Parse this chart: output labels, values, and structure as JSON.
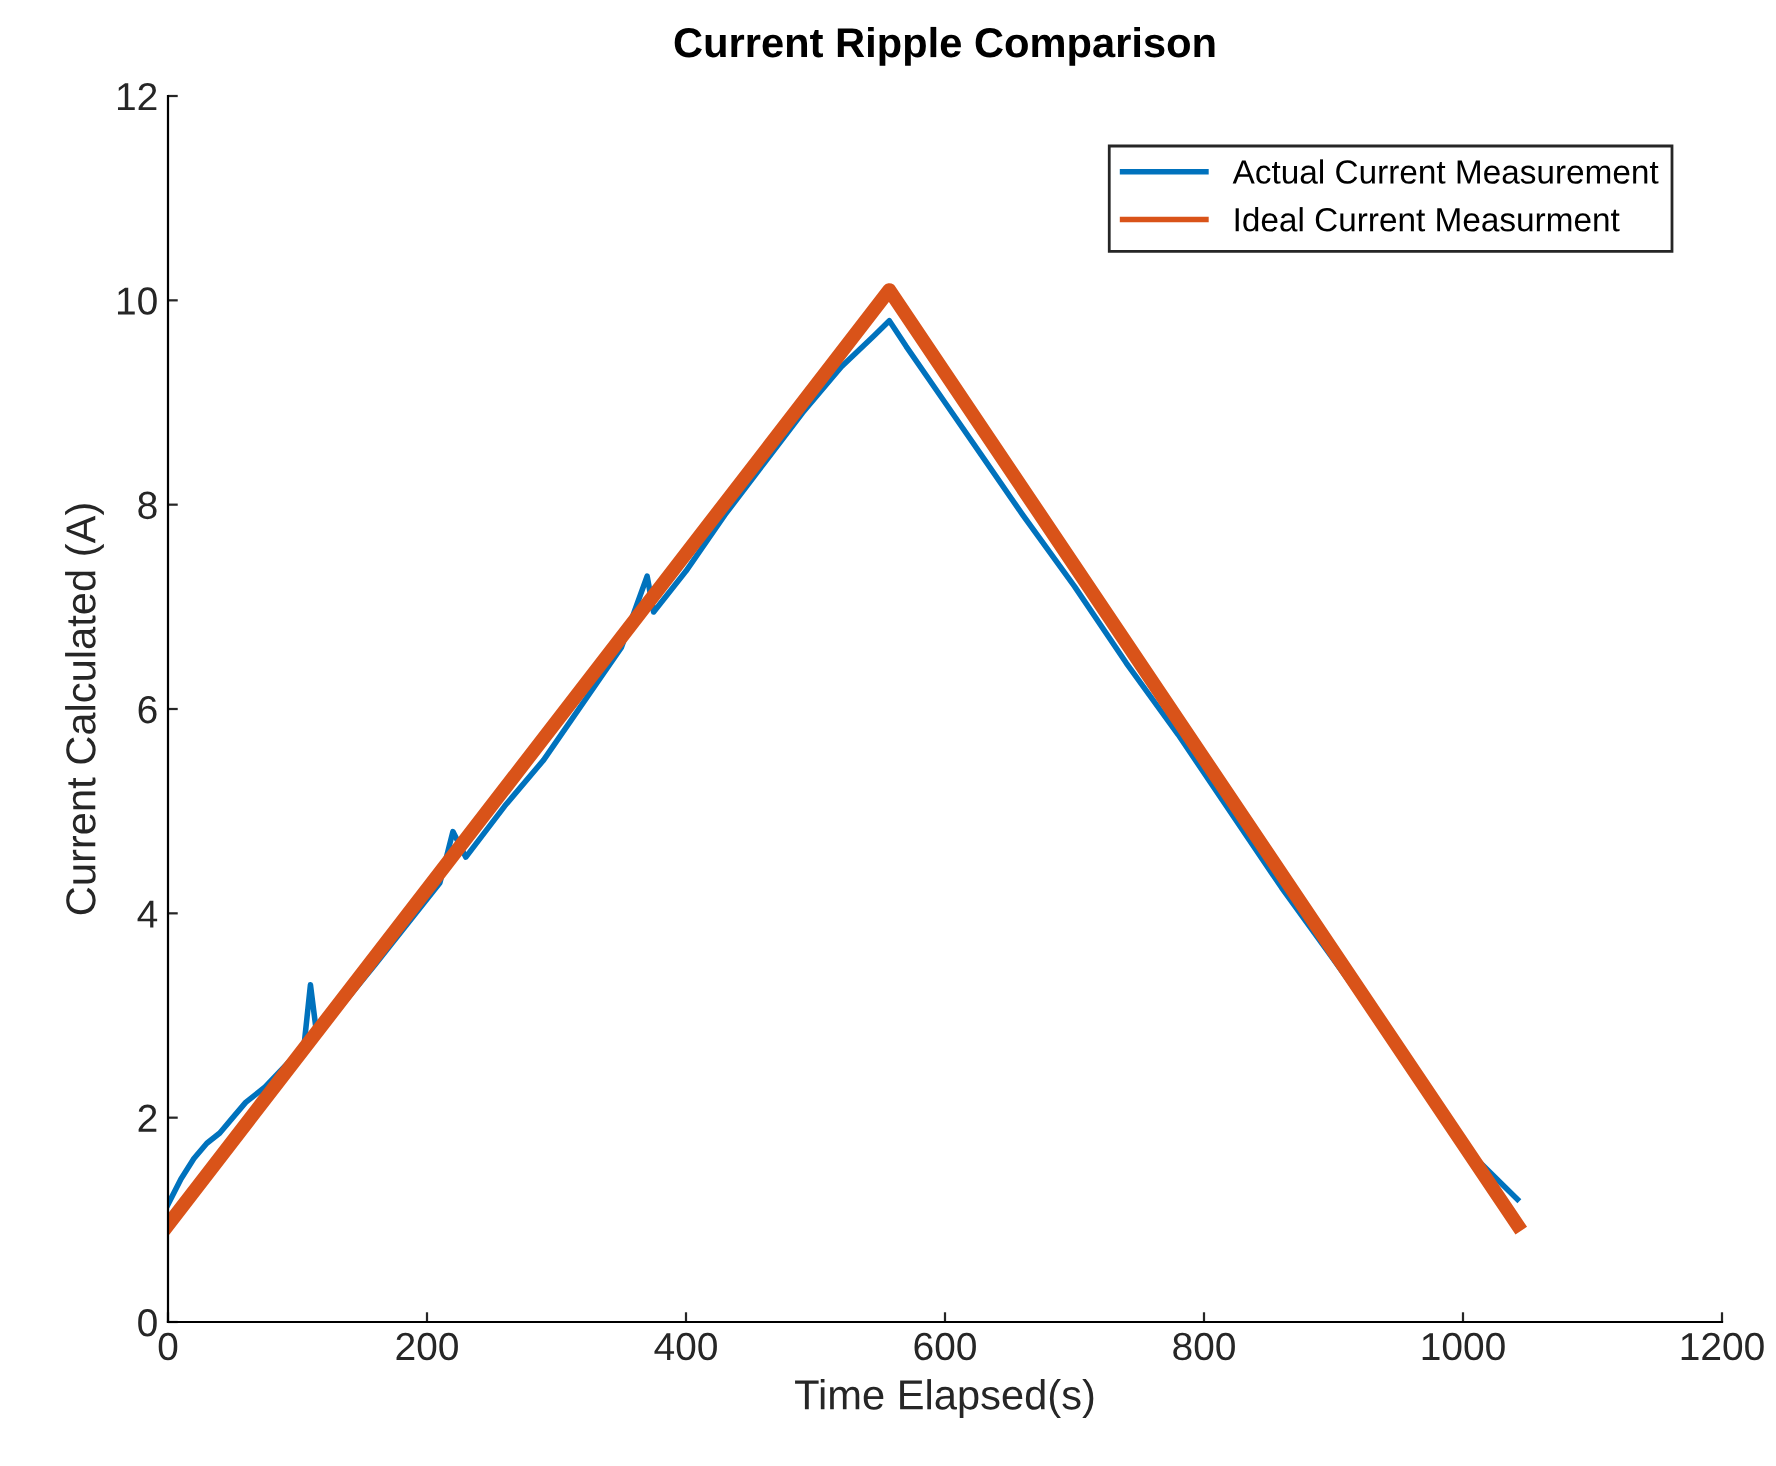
{
  "chart_data": {
    "type": "line",
    "title": "Current Ripple Comparison",
    "xlabel": "Time Elapsed(s)",
    "ylabel": "Current Calculated (A)",
    "xlim": [
      0,
      1200
    ],
    "xticks": [
      0,
      200,
      400,
      600,
      800,
      1000,
      1200
    ],
    "ylim": [
      0,
      12
    ],
    "yticks": [
      0,
      2,
      4,
      6,
      8,
      10,
      12
    ],
    "grid": false,
    "legend": "top right",
    "series": [
      {
        "name": "Actual Current Measurement",
        "color": "#0072bd",
        "x": [
          0,
          10,
          20,
          30,
          40,
          50,
          60,
          75,
          105,
          110,
          115,
          160,
          210,
          220,
          230,
          260,
          290,
          320,
          350,
          370,
          375,
          400,
          430,
          460,
          490,
          520,
          545,
          557,
          570,
          600,
          630,
          660,
          700,
          740,
          780,
          820,
          860,
          900,
          1010,
          1042
        ],
        "values": [
          1.15,
          1.4,
          1.6,
          1.75,
          1.85,
          2.0,
          2.15,
          2.3,
          2.7,
          3.3,
          2.8,
          3.5,
          4.3,
          4.8,
          4.55,
          5.05,
          5.5,
          6.05,
          6.6,
          7.3,
          6.95,
          7.35,
          7.9,
          8.4,
          8.9,
          9.35,
          9.65,
          9.8,
          9.55,
          9.0,
          8.45,
          7.9,
          7.2,
          6.45,
          5.75,
          5.0,
          4.25,
          3.55,
          1.6,
          1.2
        ]
      },
      {
        "name": "Ideal Current Measurment",
        "color": "#d95319",
        "x": [
          0,
          557,
          1042
        ],
        "values": [
          0.95,
          10.1,
          0.95
        ]
      }
    ]
  }
}
